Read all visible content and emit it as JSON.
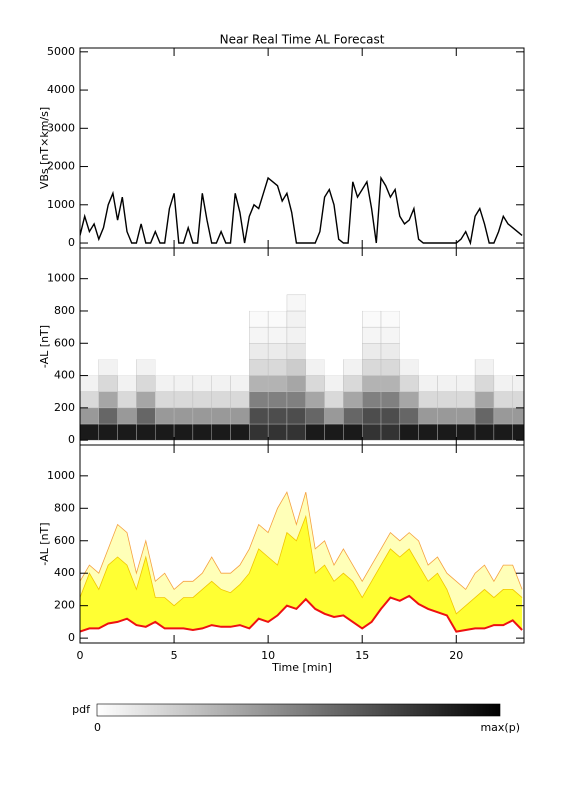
{
  "chart_data": [
    {
      "type": "line",
      "title": "Near Real Time AL Forecast",
      "ylabel": "VBs [nT×km/s]",
      "color": "#000000",
      "xlim": [
        0,
        23.6
      ],
      "xticks": [
        0,
        5,
        10,
        15,
        20
      ],
      "ylim": [
        -130,
        5100
      ],
      "yticks": [
        0,
        1000,
        2000,
        3000,
        4000,
        5000
      ],
      "x": [
        0,
        0.25,
        0.5,
        0.75,
        1,
        1.25,
        1.5,
        1.75,
        2,
        2.25,
        2.5,
        2.75,
        3,
        3.25,
        3.5,
        3.75,
        4,
        4.25,
        4.5,
        4.75,
        5,
        5.25,
        5.5,
        5.75,
        6,
        6.25,
        6.5,
        6.75,
        7,
        7.25,
        7.5,
        7.75,
        8,
        8.25,
        8.5,
        8.75,
        9,
        9.25,
        9.5,
        9.75,
        10,
        10.25,
        10.5,
        10.75,
        11,
        11.25,
        11.5,
        11.75,
        12,
        12.25,
        12.5,
        12.75,
        13,
        13.25,
        13.5,
        13.75,
        14,
        14.25,
        14.5,
        14.75,
        15,
        15.25,
        15.5,
        15.75,
        16,
        16.25,
        16.5,
        16.75,
        17,
        17.25,
        17.5,
        17.75,
        18,
        18.25,
        18.5,
        18.75,
        19,
        19.25,
        19.5,
        19.75,
        20,
        20.25,
        20.5,
        20.75,
        21,
        21.25,
        21.5,
        21.75,
        22,
        22.25,
        22.5,
        22.75,
        23,
        23.25,
        23.5
      ],
      "values": [
        200,
        700,
        300,
        500,
        100,
        400,
        1000,
        1300,
        600,
        1200,
        300,
        0,
        0,
        500,
        0,
        0,
        300,
        0,
        0,
        900,
        1300,
        0,
        0,
        400,
        0,
        0,
        1300,
        600,
        0,
        0,
        300,
        0,
        0,
        1300,
        800,
        0,
        700,
        1000,
        900,
        1300,
        1700,
        1600,
        1500,
        1100,
        1300,
        800,
        0,
        0,
        0,
        0,
        0,
        300,
        1200,
        1400,
        1000,
        100,
        0,
        0,
        1600,
        1200,
        1400,
        1600,
        900,
        0,
        1700,
        1500,
        1200,
        1400,
        700,
        500,
        600,
        900,
        100,
        0,
        0,
        0,
        0,
        0,
        0,
        0,
        0,
        100,
        300,
        0,
        700,
        900,
        500,
        0,
        0,
        300,
        700,
        500,
        400,
        300,
        200
      ]
    },
    {
      "type": "heatmap",
      "ylabel": "-AL [nT]",
      "cmap": [
        "#ffffff",
        "#000000"
      ],
      "xlim": [
        0,
        23.6
      ],
      "xticks": [
        0,
        5,
        10,
        15,
        20
      ],
      "ylim": [
        -30,
        1190
      ],
      "yticks": [
        0,
        200,
        400,
        600,
        800,
        1000
      ],
      "x_bins": [
        0,
        1,
        2,
        3,
        4,
        5,
        6,
        7,
        8,
        9,
        10,
        11,
        12,
        13,
        14,
        15,
        16,
        17,
        18,
        19,
        20,
        21,
        22,
        23,
        24
      ],
      "y_bins": [
        0,
        100,
        200,
        300,
        400,
        500,
        600,
        700,
        800,
        900
      ],
      "values": [
        [
          0.9,
          0.4,
          0.15,
          0.05,
          0,
          0,
          0,
          0,
          0
        ],
        [
          0.9,
          0.6,
          0.35,
          0.15,
          0.05,
          0,
          0,
          0,
          0
        ],
        [
          0.9,
          0.4,
          0.15,
          0.05,
          0,
          0,
          0,
          0,
          0
        ],
        [
          0.9,
          0.6,
          0.35,
          0.15,
          0.05,
          0,
          0,
          0,
          0
        ],
        [
          0.9,
          0.4,
          0.15,
          0.05,
          0,
          0,
          0,
          0,
          0
        ],
        [
          0.9,
          0.4,
          0.15,
          0.05,
          0,
          0,
          0,
          0,
          0
        ],
        [
          0.9,
          0.4,
          0.15,
          0.05,
          0,
          0,
          0,
          0,
          0
        ],
        [
          0.9,
          0.4,
          0.15,
          0.05,
          0,
          0,
          0,
          0,
          0
        ],
        [
          0.9,
          0.4,
          0.15,
          0.05,
          0,
          0,
          0,
          0,
          0
        ],
        [
          0.8,
          0.7,
          0.5,
          0.3,
          0.15,
          0.08,
          0.04,
          0.02,
          0
        ],
        [
          0.8,
          0.7,
          0.5,
          0.3,
          0.15,
          0.08,
          0.04,
          0.02,
          0
        ],
        [
          0.8,
          0.7,
          0.5,
          0.35,
          0.2,
          0.1,
          0.05,
          0.05,
          0.03
        ],
        [
          0.9,
          0.6,
          0.35,
          0.15,
          0.05,
          0,
          0,
          0,
          0
        ],
        [
          0.9,
          0.4,
          0.15,
          0.05,
          0,
          0,
          0,
          0,
          0
        ],
        [
          0.9,
          0.6,
          0.35,
          0.15,
          0.05,
          0,
          0,
          0,
          0
        ],
        [
          0.8,
          0.7,
          0.5,
          0.3,
          0.15,
          0.08,
          0.04,
          0.02,
          0
        ],
        [
          0.8,
          0.7,
          0.5,
          0.3,
          0.15,
          0.08,
          0.04,
          0.02,
          0
        ],
        [
          0.9,
          0.6,
          0.35,
          0.15,
          0.05,
          0,
          0,
          0,
          0
        ],
        [
          0.9,
          0.4,
          0.15,
          0.05,
          0,
          0,
          0,
          0,
          0
        ],
        [
          0.9,
          0.4,
          0.15,
          0.05,
          0,
          0,
          0,
          0,
          0
        ],
        [
          0.9,
          0.4,
          0.15,
          0.05,
          0,
          0,
          0,
          0,
          0
        ],
        [
          0.9,
          0.6,
          0.35,
          0.15,
          0.05,
          0,
          0,
          0,
          0
        ],
        [
          0.9,
          0.4,
          0.15,
          0.05,
          0,
          0,
          0,
          0,
          0
        ],
        [
          0.9,
          0.4,
          0.15,
          0.05,
          0,
          0,
          0,
          0,
          0
        ]
      ],
      "colorbar": {
        "label": "pdf",
        "min_label": "0",
        "max_label": "max(p)"
      }
    },
    {
      "type": "band",
      "ylabel": "-AL [nT]",
      "xlabel": "Time [min]",
      "xlim": [
        0,
        23.6
      ],
      "xticks": [
        0,
        5,
        10,
        15,
        20
      ],
      "ylim": [
        -30,
        1190
      ],
      "yticks": [
        0,
        200,
        400,
        600,
        800,
        1000
      ],
      "x": [
        0,
        0.5,
        1,
        1.5,
        2,
        2.5,
        3,
        3.5,
        4,
        4.5,
        5,
        5.5,
        6,
        6.5,
        7,
        7.5,
        8,
        8.5,
        9,
        9.5,
        10,
        10.5,
        11,
        11.5,
        12,
        12.5,
        13,
        13.5,
        14,
        14.5,
        15,
        15.5,
        16,
        16.5,
        17,
        17.5,
        18,
        18.5,
        19,
        19.5,
        20,
        20.5,
        21,
        21.5,
        22,
        22.5,
        23,
        23.5
      ],
      "series": [
        {
          "color": "#ee1111",
          "values": [
            40,
            60,
            60,
            90,
            100,
            120,
            80,
            70,
            100,
            60,
            60,
            60,
            50,
            60,
            80,
            70,
            70,
            80,
            60,
            120,
            100,
            140,
            200,
            180,
            240,
            180,
            150,
            130,
            140,
            100,
            60,
            100,
            180,
            250,
            230,
            260,
            210,
            180,
            160,
            140,
            40,
            50,
            60,
            60,
            80,
            80,
            110,
            50
          ]
        },
        {
          "color": "#f2c500",
          "fill": "#ffff33",
          "values": [
            250,
            400,
            300,
            450,
            500,
            450,
            300,
            500,
            250,
            250,
            200,
            250,
            250,
            300,
            350,
            300,
            280,
            330,
            400,
            550,
            500,
            450,
            650,
            600,
            750,
            400,
            450,
            350,
            400,
            350,
            250,
            350,
            450,
            550,
            500,
            550,
            450,
            350,
            400,
            300,
            150,
            200,
            250,
            300,
            250,
            300,
            300,
            250
          ]
        },
        {
          "color": "#f5a040",
          "fill": "#ffffb8",
          "values": [
            350,
            450,
            400,
            550,
            700,
            650,
            400,
            600,
            350,
            400,
            300,
            350,
            350,
            400,
            500,
            400,
            400,
            450,
            550,
            700,
            650,
            800,
            900,
            700,
            900,
            550,
            600,
            450,
            550,
            450,
            350,
            450,
            550,
            650,
            600,
            650,
            600,
            450,
            500,
            400,
            350,
            300,
            400,
            450,
            350,
            450,
            450,
            300
          ]
        }
      ]
    }
  ]
}
